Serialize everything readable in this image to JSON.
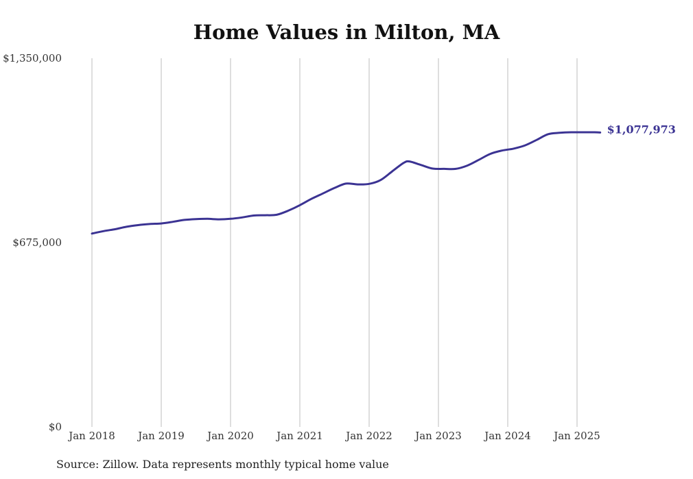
{
  "chart_data": {
    "type": "line",
    "title": "Home Values in Milton, MA",
    "source": "Source: Zillow. Data represents monthly typical home value",
    "xlabel": "",
    "ylabel": "",
    "ylim": [
      0,
      1350000
    ],
    "y_ticks": [
      0,
      675000,
      1350000
    ],
    "y_tick_labels": [
      "$0",
      "$675,000",
      "$1,350,000"
    ],
    "x_ticks": [
      "Jan 2018",
      "Jan 2019",
      "Jan 2020",
      "Jan 2021",
      "Jan 2022",
      "Jan 2023",
      "Jan 2024",
      "Jan 2025"
    ],
    "grid": "vertical",
    "line_color": "#3b3393",
    "end_label": "$1,077,973",
    "series": [
      {
        "name": "",
        "points": [
          [
            "2018-01",
            708000
          ],
          [
            "2018-03",
            717000
          ],
          [
            "2018-05",
            724000
          ],
          [
            "2018-07",
            733000
          ],
          [
            "2018-09",
            739000
          ],
          [
            "2018-11",
            743000
          ],
          [
            "2019-01",
            745000
          ],
          [
            "2019-03",
            751000
          ],
          [
            "2019-05",
            758000
          ],
          [
            "2019-07",
            761000
          ],
          [
            "2019-09",
            762000
          ],
          [
            "2019-11",
            760000
          ],
          [
            "2020-01",
            762000
          ],
          [
            "2020-03",
            767000
          ],
          [
            "2020-05",
            774000
          ],
          [
            "2020-07",
            775000
          ],
          [
            "2020-09",
            777000
          ],
          [
            "2020-11",
            792000
          ],
          [
            "2021-01",
            812000
          ],
          [
            "2021-03",
            835000
          ],
          [
            "2021-05",
            855000
          ],
          [
            "2021-07",
            875000
          ],
          [
            "2021-09",
            891000
          ],
          [
            "2021-11",
            888000
          ],
          [
            "2022-01",
            890000
          ],
          [
            "2022-03",
            904000
          ],
          [
            "2022-05",
            936000
          ],
          [
            "2022-07",
            967000
          ],
          [
            "2022-08",
            972000
          ],
          [
            "2022-10",
            959000
          ],
          [
            "2022-12",
            946000
          ],
          [
            "2023-02",
            945000
          ],
          [
            "2023-04",
            945000
          ],
          [
            "2023-06",
            957000
          ],
          [
            "2023-08",
            978000
          ],
          [
            "2023-10",
            1000000
          ],
          [
            "2023-12",
            1012000
          ],
          [
            "2024-02",
            1019000
          ],
          [
            "2024-04",
            1031000
          ],
          [
            "2024-06",
            1051000
          ],
          [
            "2024-08",
            1072000
          ],
          [
            "2024-10",
            1077000
          ],
          [
            "2024-12",
            1079000
          ],
          [
            "2025-02",
            1079000
          ],
          [
            "2025-04",
            1079000
          ],
          [
            "2025-05",
            1077973
          ]
        ]
      }
    ]
  }
}
